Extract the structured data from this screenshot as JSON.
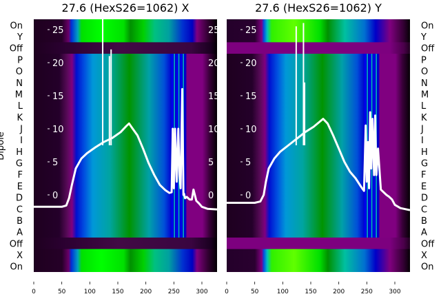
{
  "chart_data": {
    "type": "heatmap",
    "ylabel": "Dipole",
    "row_labels": [
      "On",
      "Y",
      "Off",
      "P",
      "O",
      "N",
      "M",
      "L",
      "K",
      "J",
      "I",
      "H",
      "G",
      "F",
      "E",
      "D",
      "C",
      "B",
      "A",
      "Off",
      "X",
      "On"
    ],
    "xlim": [
      0,
      327
    ],
    "xticks": [
      "0",
      "50",
      "100",
      "150",
      "200",
      "250",
      "300"
    ],
    "inner_ylim": [
      -2.2,
      26
    ],
    "inner_yticks": [
      "25",
      "20",
      "15",
      "10",
      "5",
      "0"
    ],
    "colors": {
      "line": "#ffffff",
      "dark": "#200020",
      "purple": "#800080",
      "blue": "#0000d0",
      "teal": "#00a0a0",
      "green": "#009000",
      "bright_green": "#00ff00"
    },
    "panels": [
      {
        "title": "27.6 (HexS26=1062) X",
        "off_color": "#2e0530",
        "line": {
          "x": [
            0,
            50,
            58,
            63,
            68,
            75,
            85,
            95,
            110,
            125,
            140,
            155,
            165,
            170,
            175,
            185,
            195,
            205,
            215,
            225,
            235,
            242,
            246,
            248,
            250,
            252,
            255,
            258,
            260,
            262,
            265,
            267,
            268,
            270,
            273,
            278,
            282,
            285,
            290,
            295,
            300,
            310,
            327
          ],
          "y": [
            -1.8,
            -1.8,
            -1.6,
            -0.5,
            1.5,
            4,
            5.5,
            6.3,
            7.2,
            8,
            8.6,
            9.5,
            10.4,
            10.8,
            10.2,
            9,
            7,
            4.8,
            3,
            1.5,
            0.7,
            0.3,
            0.4,
            10,
            1,
            10,
            2,
            10,
            3,
            1,
            16,
            0,
            0.2,
            -0.5,
            -0.3,
            -0.7,
            -0.7,
            0.8,
            -0.9,
            -1.3,
            -1.8,
            -2.1,
            -2.2
          ]
        },
        "spikes": [
          {
            "x": 123,
            "y": 27
          },
          {
            "x": 135,
            "y": 21
          },
          {
            "x": 138,
            "y": 22
          }
        ]
      },
      {
        "title": "27.6 (HexS26=1062) Y",
        "off_color": "#7d007f",
        "line": {
          "x": [
            0,
            50,
            60,
            66,
            70,
            75,
            85,
            95,
            110,
            125,
            140,
            155,
            165,
            172,
            180,
            190,
            200,
            210,
            220,
            230,
            240,
            245,
            248,
            250,
            252,
            254,
            256,
            258,
            260,
            263,
            265,
            267,
            270,
            275,
            285,
            290,
            295,
            300,
            310,
            327
          ],
          "y": [
            -1.2,
            -1.2,
            -1.0,
            0,
            2,
            4,
            5.5,
            6.5,
            7.5,
            8.5,
            9.5,
            10.3,
            11,
            11.5,
            10.8,
            9,
            7,
            5,
            3.5,
            2.5,
            1.2,
            0.6,
            10.5,
            2,
            8,
            1,
            12.5,
            4,
            11.5,
            3,
            12,
            3,
            7,
            0.8,
            0,
            -0.3,
            -0.7,
            -1.5,
            -2.0,
            -2.3
          ]
        },
        "spikes": [
          {
            "x": 124,
            "y": 25.5
          },
          {
            "x": 137,
            "y": 26
          },
          {
            "x": 139,
            "y": 17
          }
        ]
      }
    ]
  }
}
